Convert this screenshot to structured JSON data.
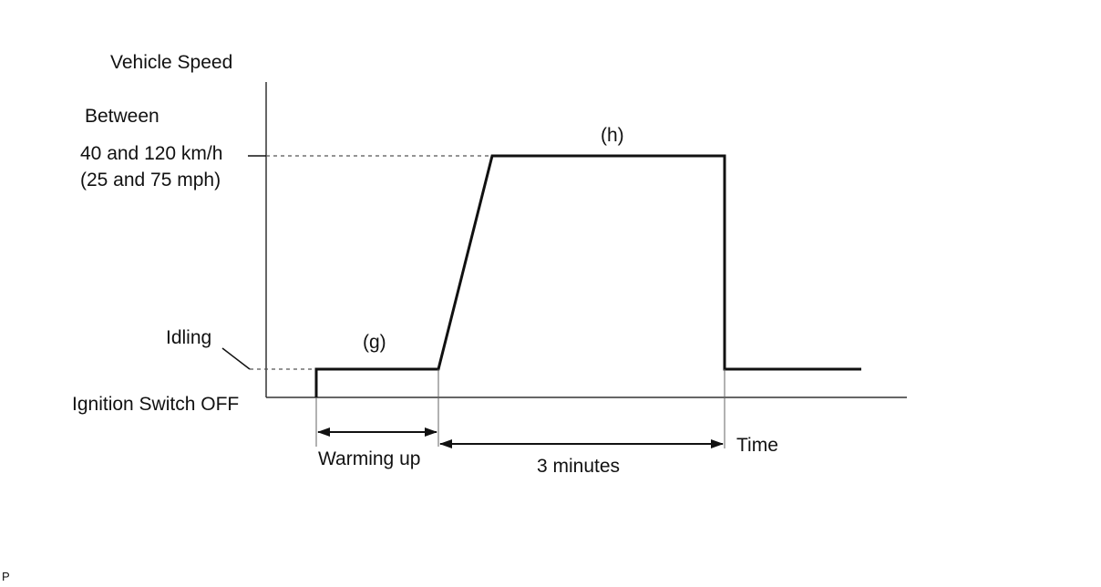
{
  "y_axis_label": "Vehicle Speed",
  "target_speed": {
    "line1": "Between",
    "line2": "40 and 120 km/h",
    "line3": "(25 and 75 mph)"
  },
  "idling_label": "Idling",
  "ignition_off_label": "Ignition Switch OFF",
  "phase_g_label": "(g)",
  "phase_h_label": "(h)",
  "warming_up_label": "Warming up",
  "duration_label": "3 minutes",
  "x_axis_label": "Time",
  "corner_mark": "P"
}
